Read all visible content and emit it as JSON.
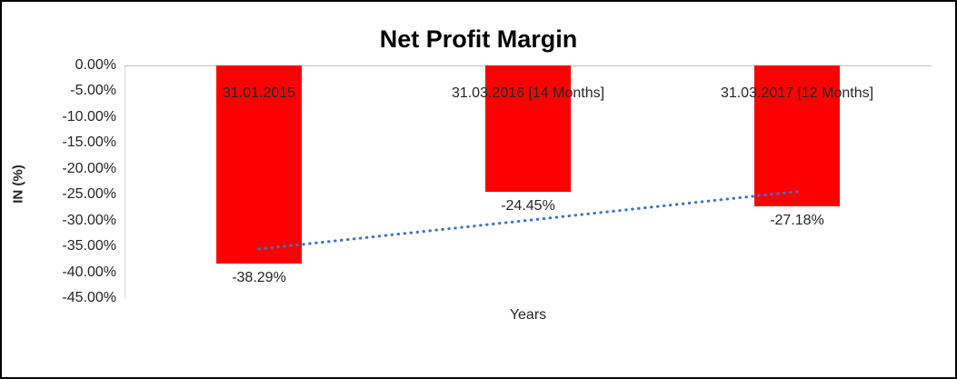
{
  "chart_data": {
    "type": "bar",
    "title": "Net Profit Margin",
    "xlabel": "Years",
    "ylabel": "IN (%)",
    "categories": [
      "31.01.2015",
      "31.03.2016 [14 Months]",
      "31.03.2017 [12 Months]"
    ],
    "values": [
      -38.29,
      -24.45,
      -27.18
    ],
    "data_labels": [
      "-38.29%",
      "-24.45%",
      "-27.18%"
    ],
    "ylim": [
      -45,
      0
    ],
    "ytick_step": 5,
    "ytick_labels": [
      "0.00%",
      "-5.00%",
      "-10.00%",
      "-15.00%",
      "-20.00%",
      "-25.00%",
      "-30.00%",
      "-35.00%",
      "-40.00%",
      "-45.00%"
    ],
    "grid": false,
    "legend": "none",
    "bar_color": "#ff0000",
    "trendline": {
      "style": "dotted",
      "color": "#4472c4",
      "from_value": -35.5,
      "to_value": -24.4
    }
  }
}
